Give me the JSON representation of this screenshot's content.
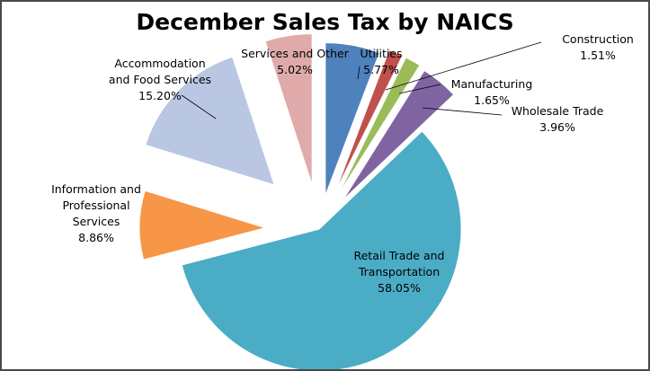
{
  "chart_data": {
    "type": "pie",
    "title": "December Sales Tax by NAICS",
    "exploded": true,
    "slices": [
      {
        "label_lines": [
          "Utilities",
          "5.77%"
        ],
        "value": 5.77,
        "color": "#4F81BD"
      },
      {
        "label_lines": [
          "Construction",
          "1.51%"
        ],
        "value": 1.51,
        "color": "#C0504D"
      },
      {
        "label_lines": [
          "Manufacturing",
          "1.65%"
        ],
        "value": 1.65,
        "color": "#9BBB59"
      },
      {
        "label_lines": [
          "Wholesale Trade",
          "3.96%"
        ],
        "value": 3.96,
        "color": "#8064A2"
      },
      {
        "label_lines": [
          "Retail Trade and",
          "Transportation",
          "58.05%"
        ],
        "value": 58.05,
        "color": "#4BACC6"
      },
      {
        "label_lines": [
          "Information and",
          "Professional",
          "Services",
          "8.86%"
        ],
        "value": 8.86,
        "color": "#F79646"
      },
      {
        "label_lines": [
          "Accommodation",
          "and Food Services",
          "15.20%"
        ],
        "value": 15.2,
        "color": "#B9C7E3"
      },
      {
        "label_lines": [
          "Services and Other",
          "5.02%"
        ],
        "value": 5.02,
        "color": "#E0AAAA"
      }
    ]
  }
}
